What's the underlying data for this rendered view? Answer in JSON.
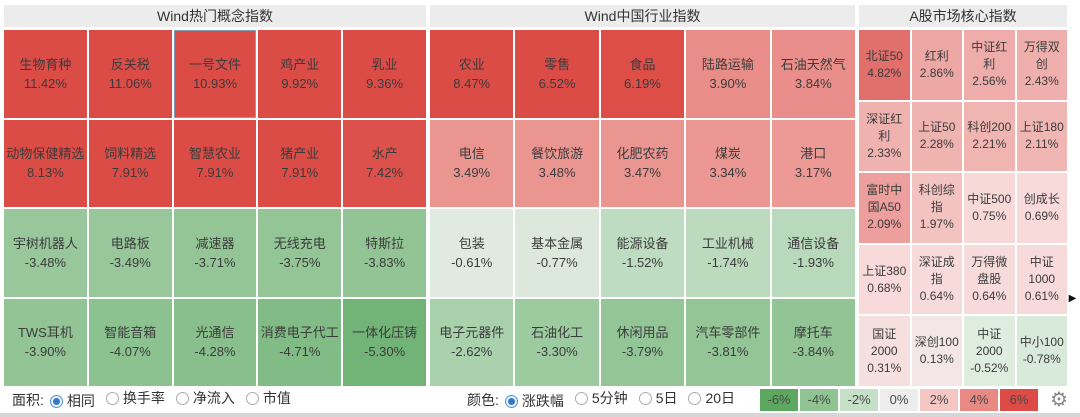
{
  "chart_data": {
    "type": "heatmap",
    "color_metric": "涨跌幅",
    "area_metric": "相同",
    "legend_scale_pct": [
      -6,
      -4,
      -2,
      0,
      2,
      4,
      6
    ],
    "groups": [
      {
        "title": "Wind热门概念指数",
        "columns": 5,
        "items": [
          {
            "label": "生物育种",
            "change_pct": 11.42,
            "display": "11.42%",
            "color": "#dc4c47",
            "selected": false
          },
          {
            "label": "反关税",
            "change_pct": 11.06,
            "display": "11.06%",
            "color": "#dc4c47",
            "selected": false
          },
          {
            "label": "一号文件",
            "change_pct": 10.93,
            "display": "10.93%",
            "color": "#dc4c47",
            "selected": true
          },
          {
            "label": "鸡产业",
            "change_pct": 9.92,
            "display": "9.92%",
            "color": "#dc4c47",
            "selected": false
          },
          {
            "label": "乳业",
            "change_pct": 9.36,
            "display": "9.36%",
            "color": "#dc4c47",
            "selected": false
          },
          {
            "label": "动物保健精选",
            "change_pct": 8.13,
            "display": "8.13%",
            "color": "#dc4c47",
            "selected": false
          },
          {
            "label": "饲料精选",
            "change_pct": 7.91,
            "display": "7.91%",
            "color": "#dc4c47",
            "selected": false
          },
          {
            "label": "智慧农业",
            "change_pct": 7.91,
            "display": "7.91%",
            "color": "#dc4c47",
            "selected": false
          },
          {
            "label": "猪产业",
            "change_pct": 7.91,
            "display": "7.91%",
            "color": "#dc4c47",
            "selected": false
          },
          {
            "label": "水产",
            "change_pct": 7.42,
            "display": "7.42%",
            "color": "#dd514c",
            "selected": false
          },
          {
            "label": "宇树机器人",
            "change_pct": -3.48,
            "display": "-3.48%",
            "color": "#97c79a",
            "selected": false
          },
          {
            "label": "电路板",
            "change_pct": -3.49,
            "display": "-3.49%",
            "color": "#97c79a",
            "selected": false
          },
          {
            "label": "减速器",
            "change_pct": -3.71,
            "display": "-3.71%",
            "color": "#94c597",
            "selected": false
          },
          {
            "label": "无线充电",
            "change_pct": -3.75,
            "display": "-3.75%",
            "color": "#93c596",
            "selected": false
          },
          {
            "label": "特斯拉",
            "change_pct": -3.83,
            "display": "-3.83%",
            "color": "#92c495",
            "selected": false
          },
          {
            "label": "TWS耳机",
            "change_pct": -3.9,
            "display": "-3.90%",
            "color": "#92c495",
            "selected": false
          },
          {
            "label": "智能音箱",
            "change_pct": -4.07,
            "display": "-4.07%",
            "color": "#8cc190",
            "selected": false
          },
          {
            "label": "光通信",
            "change_pct": -4.28,
            "display": "-4.28%",
            "color": "#88bf8c",
            "selected": false
          },
          {
            "label": "消费电子代工",
            "change_pct": -4.71,
            "display": "-4.71%",
            "color": "#81bb85",
            "selected": false
          },
          {
            "label": "一体化压铸",
            "change_pct": -5.3,
            "display": "-5.30%",
            "color": "#72b478",
            "selected": false
          }
        ]
      },
      {
        "title": "Wind中国行业指数",
        "columns": 5,
        "items": [
          {
            "label": "农业",
            "change_pct": 8.47,
            "display": "8.47%",
            "color": "#dc4c47",
            "selected": false
          },
          {
            "label": "零售",
            "change_pct": 6.52,
            "display": "6.52%",
            "color": "#dc4c47",
            "selected": false
          },
          {
            "label": "食品",
            "change_pct": 6.19,
            "display": "6.19%",
            "color": "#dd4e49",
            "selected": false
          },
          {
            "label": "陆路运输",
            "change_pct": 3.9,
            "display": "3.90%",
            "color": "#e98d88",
            "selected": false
          },
          {
            "label": "石油天然气",
            "change_pct": 3.84,
            "display": "3.84%",
            "color": "#e98e8a",
            "selected": false
          },
          {
            "label": "电信",
            "change_pct": 3.49,
            "display": "3.49%",
            "color": "#eb9591",
            "selected": false
          },
          {
            "label": "餐饮旅游",
            "change_pct": 3.48,
            "display": "3.48%",
            "color": "#eb9591",
            "selected": false
          },
          {
            "label": "化肥农药",
            "change_pct": 3.47,
            "display": "3.47%",
            "color": "#eb9591",
            "selected": false
          },
          {
            "label": "煤炭",
            "change_pct": 3.34,
            "display": "3.34%",
            "color": "#ec9793",
            "selected": false
          },
          {
            "label": "港口",
            "change_pct": 3.17,
            "display": "3.17%",
            "color": "#ed9a96",
            "selected": false
          },
          {
            "label": "包装",
            "change_pct": -0.61,
            "display": "-0.61%",
            "color": "#e0eae0",
            "selected": false
          },
          {
            "label": "基本金属",
            "change_pct": -0.77,
            "display": "-0.77%",
            "color": "#dde8dd",
            "selected": false
          },
          {
            "label": "能源设备",
            "change_pct": -1.52,
            "display": "-1.52%",
            "color": "#bedcc1",
            "selected": false
          },
          {
            "label": "工业机械",
            "change_pct": -1.74,
            "display": "-1.74%",
            "color": "#bbdabe",
            "selected": false
          },
          {
            "label": "通信设备",
            "change_pct": -1.93,
            "display": "-1.93%",
            "color": "#b8d9bb",
            "selected": false
          },
          {
            "label": "电子元器件",
            "change_pct": -2.62,
            "display": "-2.62%",
            "color": "#a9d1ac",
            "selected": false
          },
          {
            "label": "石油化工",
            "change_pct": -3.3,
            "display": "-3.30%",
            "color": "#9ccb9f",
            "selected": false
          },
          {
            "label": "休闲用品",
            "change_pct": -3.79,
            "display": "-3.79%",
            "color": "#93c596",
            "selected": false
          },
          {
            "label": "汽车零部件",
            "change_pct": -3.81,
            "display": "-3.81%",
            "color": "#93c596",
            "selected": false
          },
          {
            "label": "摩托车",
            "change_pct": -3.84,
            "display": "-3.84%",
            "color": "#92c495",
            "selected": false
          }
        ]
      },
      {
        "title": "A股市场核心指数",
        "columns": 4,
        "items": [
          {
            "label": "北证50",
            "change_pct": 4.82,
            "display": "4.82%",
            "color": "#e16f6b",
            "selected": false
          },
          {
            "label": "红利",
            "change_pct": 2.86,
            "display": "2.86%",
            "color": "#eda8a5",
            "selected": false
          },
          {
            "label": "中证红利",
            "change_pct": 2.56,
            "display": "2.56%",
            "color": "#eeadaa",
            "selected": false
          },
          {
            "label": "万得双创",
            "change_pct": 2.43,
            "display": "2.43%",
            "color": "#efb0ad",
            "selected": false
          },
          {
            "label": "深证红利",
            "change_pct": 2.33,
            "display": "2.33%",
            "color": "#efb2af",
            "selected": false
          },
          {
            "label": "上证50",
            "change_pct": 2.28,
            "display": "2.28%",
            "color": "#efb3b0",
            "selected": false
          },
          {
            "label": "科创200",
            "change_pct": 2.21,
            "display": "2.21%",
            "color": "#f0b4b1",
            "selected": false
          },
          {
            "label": "上证180",
            "change_pct": 2.11,
            "display": "2.11%",
            "color": "#f0b6b3",
            "selected": false
          },
          {
            "label": "富时中国A50",
            "change_pct": 2.09,
            "display": "2.09%",
            "color": "#ec9f9c",
            "selected": false
          },
          {
            "label": "科创综指",
            "change_pct": 1.97,
            "display": "1.97%",
            "color": "#f3c3c1",
            "selected": false
          },
          {
            "label": "中证500",
            "change_pct": 0.75,
            "display": "0.75%",
            "color": "#f7d9d8",
            "selected": false
          },
          {
            "label": "创成长",
            "change_pct": 0.69,
            "display": "0.69%",
            "color": "#f7dad9",
            "selected": false
          },
          {
            "label": "上证380",
            "change_pct": 0.68,
            "display": "0.68%",
            "color": "#f7dad9",
            "selected": false
          },
          {
            "label": "深证成指",
            "change_pct": 0.64,
            "display": "0.64%",
            "color": "#f7dbda",
            "selected": false
          },
          {
            "label": "万得微盘股",
            "change_pct": 0.64,
            "display": "0.64%",
            "color": "#f7dbda",
            "selected": false
          },
          {
            "label": "中证1000",
            "change_pct": 0.61,
            "display": "0.61%",
            "color": "#f7dbda",
            "selected": false
          },
          {
            "label": "国证2000",
            "change_pct": 0.31,
            "display": "0.31%",
            "color": "#f5e0df",
            "selected": false
          },
          {
            "label": "深创100",
            "change_pct": 0.13,
            "display": "0.13%",
            "color": "#f2e7e6",
            "selected": false
          },
          {
            "label": "中证2000",
            "change_pct": -0.52,
            "display": "-0.52%",
            "color": "#deedde",
            "selected": false
          },
          {
            "label": "中小100",
            "change_pct": -0.78,
            "display": "-0.78%",
            "color": "#d8ead9",
            "selected": false
          }
        ]
      }
    ]
  },
  "controls": {
    "area_label": "面积:",
    "area_options": [
      {
        "label": "相同",
        "selected": true
      },
      {
        "label": "换手率",
        "selected": false
      },
      {
        "label": "净流入",
        "selected": false
      },
      {
        "label": "市值",
        "selected": false
      }
    ],
    "color_label": "颜色:",
    "color_options": [
      {
        "label": "涨跌幅",
        "selected": true
      },
      {
        "label": "5分钟",
        "selected": false
      },
      {
        "label": "5日",
        "selected": false
      },
      {
        "label": "20日",
        "selected": false
      }
    ],
    "legend": [
      {
        "label": "-6%",
        "color": "#5ca860"
      },
      {
        "label": "-4%",
        "color": "#8fc492"
      },
      {
        "label": "-2%",
        "color": "#c6e0c8"
      },
      {
        "label": "0%",
        "color": "#ededed"
      },
      {
        "label": "2%",
        "color": "#f4c6c4"
      },
      {
        "label": "4%",
        "color": "#e98984"
      },
      {
        "label": "6%",
        "color": "#dc4b45"
      }
    ]
  },
  "icons": {
    "settings": "⚙",
    "expand": "▶"
  },
  "ui_colors": {
    "selected_cell_border": "#7fa0b6",
    "header_bg": "#ececec",
    "radio_selected": "#3579c4"
  }
}
